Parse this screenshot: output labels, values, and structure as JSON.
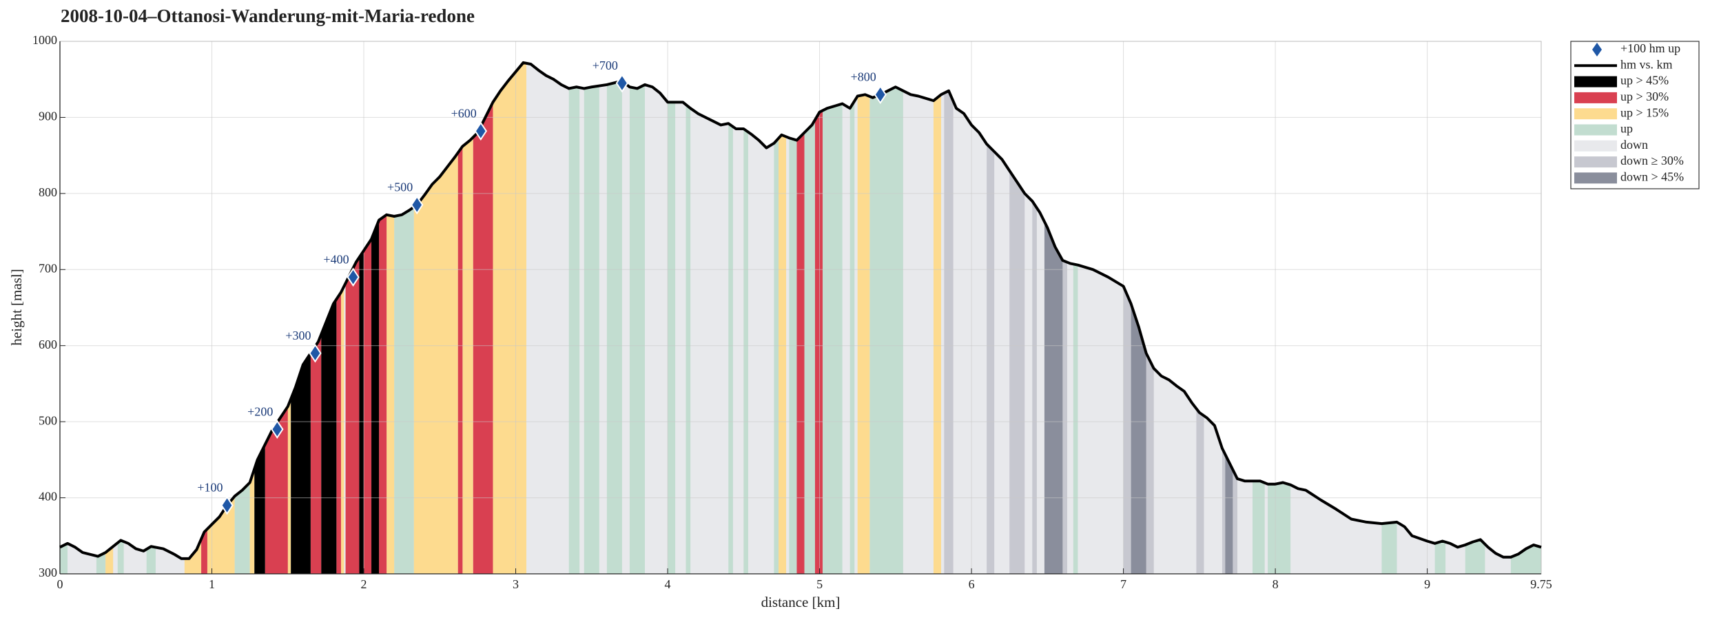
{
  "chart_data": {
    "type": "area",
    "title": "2008-10-04–Ottanosi-Wanderung-mit-Maria-redone",
    "x_label": "distance [km]",
    "y_label": "height [masl]",
    "xlim": [
      0,
      9.75
    ],
    "ylim": [
      300,
      1000
    ],
    "xticks": [
      0,
      1,
      2,
      3,
      4,
      5,
      6,
      7,
      8,
      9,
      9.75
    ],
    "yticks": [
      300,
      400,
      500,
      600,
      700,
      800,
      900,
      1000
    ],
    "grid": true,
    "legend": "outside right",
    "markers": {
      "name": "+100 hm up",
      "color": "#1f57a6",
      "x": [
        1.1,
        1.43,
        1.68,
        1.93,
        2.35,
        2.77,
        3.7,
        5.4
      ],
      "y": [
        390,
        490,
        590,
        690,
        785,
        882,
        945,
        930
      ],
      "labels": [
        "+100",
        "+200",
        "+300",
        "+400",
        "+500",
        "+600",
        "+700",
        "+800"
      ]
    },
    "profile": {
      "name": "hm vs. km",
      "color": "#000000",
      "x": [
        0,
        0.05,
        0.1,
        0.15,
        0.25,
        0.3,
        0.4,
        0.45,
        0.5,
        0.55,
        0.6,
        0.68,
        0.75,
        0.8,
        0.85,
        0.9,
        0.95,
        1.0,
        1.05,
        1.1,
        1.15,
        1.2,
        1.25,
        1.3,
        1.35,
        1.4,
        1.45,
        1.5,
        1.55,
        1.6,
        1.65,
        1.7,
        1.75,
        1.8,
        1.85,
        1.9,
        1.95,
        2.0,
        2.05,
        2.1,
        2.15,
        2.2,
        2.25,
        2.3,
        2.35,
        2.4,
        2.45,
        2.5,
        2.55,
        2.6,
        2.65,
        2.7,
        2.75,
        2.8,
        2.85,
        2.9,
        2.95,
        3.0,
        3.05,
        3.1,
        3.15,
        3.2,
        3.25,
        3.3,
        3.35,
        3.4,
        3.45,
        3.5,
        3.6,
        3.7,
        3.75,
        3.8,
        3.85,
        3.9,
        3.95,
        4.0,
        4.1,
        4.15,
        4.2,
        4.3,
        4.35,
        4.4,
        4.45,
        4.5,
        4.55,
        4.6,
        4.65,
        4.7,
        4.75,
        4.8,
        4.85,
        4.9,
        4.95,
        5.0,
        5.05,
        5.1,
        5.15,
        5.2,
        5.25,
        5.3,
        5.35,
        5.4,
        5.45,
        5.5,
        5.55,
        5.6,
        5.65,
        5.7,
        5.75,
        5.8,
        5.85,
        5.9,
        5.95,
        6.0,
        6.05,
        6.1,
        6.15,
        6.2,
        6.25,
        6.3,
        6.35,
        6.4,
        6.45,
        6.5,
        6.55,
        6.6,
        6.65,
        6.7,
        6.8,
        6.9,
        7.0,
        7.05,
        7.1,
        7.15,
        7.2,
        7.25,
        7.3,
        7.35,
        7.4,
        7.45,
        7.5,
        7.55,
        7.6,
        7.65,
        7.7,
        7.75,
        7.8,
        7.9,
        7.95,
        8.0,
        8.05,
        8.1,
        8.15,
        8.2,
        8.3,
        8.4,
        8.5,
        8.6,
        8.7,
        8.8,
        8.85,
        8.9,
        9.0,
        9.05,
        9.1,
        9.15,
        9.2,
        9.25,
        9.3,
        9.35,
        9.4,
        9.45,
        9.5,
        9.55,
        9.6,
        9.65,
        9.7,
        9.75
      ],
      "y": [
        335,
        340,
        335,
        328,
        323,
        328,
        344,
        340,
        333,
        330,
        336,
        333,
        326,
        320,
        320,
        332,
        355,
        365,
        375,
        390,
        402,
        410,
        420,
        450,
        470,
        490,
        505,
        520,
        545,
        575,
        590,
        605,
        630,
        655,
        670,
        690,
        710,
        725,
        740,
        765,
        772,
        770,
        772,
        778,
        785,
        798,
        812,
        822,
        835,
        848,
        862,
        870,
        880,
        900,
        920,
        935,
        948,
        960,
        972,
        970,
        962,
        955,
        950,
        943,
        938,
        940,
        938,
        940,
        943,
        948,
        940,
        938,
        943,
        940,
        932,
        920,
        920,
        912,
        905,
        895,
        890,
        892,
        885,
        885,
        878,
        870,
        860,
        866,
        877,
        873,
        870,
        880,
        890,
        907,
        912,
        915,
        918,
        912,
        928,
        930,
        926,
        930,
        935,
        940,
        935,
        930,
        928,
        925,
        922,
        930,
        935,
        912,
        905,
        890,
        880,
        865,
        855,
        845,
        830,
        815,
        800,
        790,
        775,
        755,
        730,
        712,
        708,
        706,
        700,
        690,
        678,
        655,
        625,
        590,
        570,
        560,
        555,
        547,
        540,
        525,
        512,
        505,
        495,
        465,
        445,
        425,
        422,
        422,
        418,
        418,
        420,
        417,
        412,
        410,
        397,
        385,
        372,
        368,
        366,
        368,
        362,
        350,
        343,
        340,
        343,
        340,
        335,
        338,
        342,
        345,
        335,
        327,
        322,
        322,
        326,
        333,
        338,
        335
      ]
    },
    "bands": [
      {
        "name": "up > 45%",
        "color": "#000000",
        "ranges": [
          [
            1.28,
            1.35
          ],
          [
            1.52,
            1.65
          ],
          [
            1.72,
            1.82
          ],
          [
            1.97,
            2.0
          ],
          [
            2.05,
            2.1
          ]
        ]
      },
      {
        "name": "up > 30%",
        "color": "#d94051",
        "ranges": [
          [
            0.93,
            0.97
          ],
          [
            1.35,
            1.5
          ],
          [
            1.65,
            1.72
          ],
          [
            1.82,
            1.85
          ],
          [
            1.88,
            1.97
          ],
          [
            2.0,
            2.05
          ],
          [
            2.1,
            2.15
          ],
          [
            2.62,
            2.65
          ],
          [
            2.72,
            2.85
          ],
          [
            4.85,
            4.9
          ],
          [
            4.97,
            5.02
          ]
        ]
      },
      {
        "name": "up > 15%",
        "color": "#fddb8f",
        "ranges": [
          [
            0.3,
            0.35
          ],
          [
            0.82,
            0.93
          ],
          [
            0.97,
            1.15
          ],
          [
            1.25,
            1.28
          ],
          [
            1.47,
            1.52
          ],
          [
            1.85,
            1.87
          ],
          [
            2.15,
            2.2
          ],
          [
            2.33,
            2.62
          ],
          [
            2.65,
            2.72
          ],
          [
            2.85,
            3.07
          ],
          [
            4.73,
            4.78
          ],
          [
            5.25,
            5.33
          ],
          [
            5.75,
            5.8
          ]
        ]
      },
      {
        "name": "up",
        "color": "#c2ddd0",
        "ranges": [
          [
            0,
            0.05
          ],
          [
            0.24,
            0.3
          ],
          [
            0.38,
            0.42
          ],
          [
            0.57,
            0.63
          ],
          [
            1.15,
            1.25
          ],
          [
            2.2,
            2.33
          ],
          [
            3.35,
            3.42
          ],
          [
            3.45,
            3.55
          ],
          [
            3.6,
            3.7
          ],
          [
            3.75,
            3.85
          ],
          [
            4.0,
            4.05
          ],
          [
            4.12,
            4.15
          ],
          [
            4.4,
            4.43
          ],
          [
            4.5,
            4.53
          ],
          [
            4.7,
            4.73
          ],
          [
            4.8,
            4.85
          ],
          [
            4.9,
            4.97
          ],
          [
            5.02,
            5.15
          ],
          [
            5.2,
            5.23
          ],
          [
            5.33,
            5.55
          ],
          [
            6.67,
            6.7
          ],
          [
            7.85,
            7.93
          ],
          [
            7.95,
            8.1
          ],
          [
            8.7,
            8.8
          ],
          [
            9.05,
            9.12
          ],
          [
            9.25,
            9.38
          ],
          [
            9.55,
            9.75
          ]
        ]
      },
      {
        "name": "down",
        "color": "#e8e9ec",
        "ranges": [
          [
            0,
            9.75
          ]
        ]
      },
      {
        "name": "down ≥ 30%",
        "color": "#c7c8d0",
        "ranges": [
          [
            5.82,
            5.88
          ],
          [
            6.1,
            6.15
          ],
          [
            6.25,
            6.35
          ],
          [
            6.4,
            6.43
          ],
          [
            6.6,
            6.63
          ],
          [
            7.0,
            7.05
          ],
          [
            7.15,
            7.2
          ],
          [
            7.48,
            7.53
          ],
          [
            7.65,
            7.67
          ],
          [
            7.72,
            7.75
          ]
        ]
      },
      {
        "name": "down > 45%",
        "color": "#8a8e9c",
        "ranges": [
          [
            6.48,
            6.6
          ],
          [
            7.05,
            7.15
          ],
          [
            7.67,
            7.72
          ]
        ]
      }
    ]
  }
}
